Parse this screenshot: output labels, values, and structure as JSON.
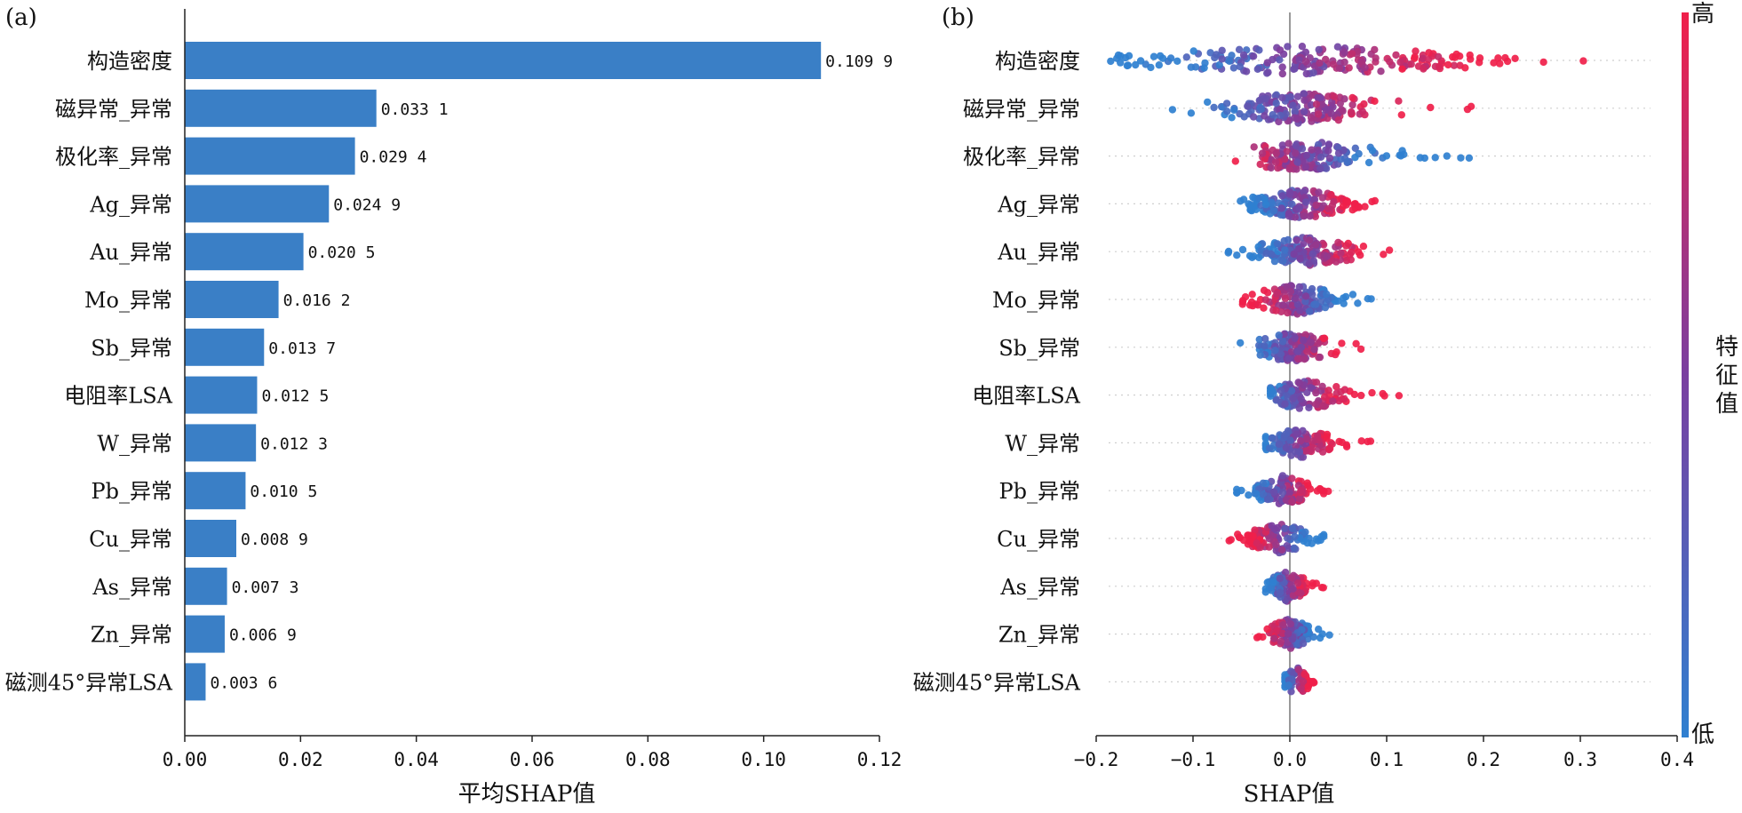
{
  "chart_data": [
    {
      "type": "bar",
      "orientation": "horizontal",
      "panel_label": "(a)",
      "xlabel": "平均SHAP值",
      "xlim": [
        0,
        0.12
      ],
      "xticks": [
        "0.00",
        "0.02",
        "0.04",
        "0.06",
        "0.08",
        "0.10",
        "0.12"
      ],
      "bar_color": "#3a7fc6",
      "categories": [
        "构造密度",
        "磁异常_异常",
        "极化率_异常",
        "Ag_异常",
        "Au_异常",
        "Mo_异常",
        "Sb_异常",
        "电阻率LSA",
        "W_异常",
        "Pb_异常",
        "Cu_异常",
        "As_异常",
        "Zn_异常",
        "磁测45°异常LSA"
      ],
      "values": [
        0.1099,
        0.0331,
        0.0294,
        0.0249,
        0.0205,
        0.0162,
        0.0137,
        0.0125,
        0.0123,
        0.0105,
        0.0089,
        0.0073,
        0.0069,
        0.0036
      ],
      "value_labels": [
        "0.109 9",
        "0.033 1",
        "0.029 4",
        "0.024 9",
        "0.020 5",
        "0.016 2",
        "0.013 7",
        "0.012 5",
        "0.012 3",
        "0.010 5",
        "0.008 9",
        "0.007 3",
        "0.006 9",
        "0.003 6"
      ]
    },
    {
      "type": "scatter",
      "subtype": "beeswarm",
      "panel_label": "(b)",
      "xlabel": "SHAP值",
      "xlim": [
        -0.2,
        0.4
      ],
      "xticks": [
        "−0.2",
        "−0.1",
        "0.0",
        "0.1",
        "0.2",
        "0.3",
        "0.4"
      ],
      "zero_line": 0,
      "colorbar": {
        "label": "特征值",
        "high_label": "高",
        "low_label": "低",
        "low_color": "#2f80d0",
        "mid_color": "#7a3fa0",
        "high_color": "#f0204a"
      },
      "features": [
        {
          "name": "构造密度",
          "min": -0.185,
          "max": 0.325,
          "low_side": -0.11,
          "high_side": 0.15,
          "n": 200
        },
        {
          "name": "磁异常_异常",
          "min": -0.13,
          "max": 0.2,
          "low_side": -0.04,
          "high_side": 0.06,
          "n": 160
        },
        {
          "name": "极化率_异常",
          "min": -0.06,
          "max": 0.21,
          "low_side": 0.05,
          "high_side": -0.02,
          "n": 150
        },
        {
          "name": "Ag_异常",
          "min": -0.055,
          "max": 0.1,
          "low_side": -0.025,
          "high_side": 0.05,
          "n": 150
        },
        {
          "name": "Au_异常",
          "min": -0.065,
          "max": 0.11,
          "low_side": -0.01,
          "high_side": 0.05,
          "n": 140
        },
        {
          "name": "Mo_异常",
          "min": -0.05,
          "max": 0.09,
          "low_side": 0.03,
          "high_side": -0.015,
          "n": 130
        },
        {
          "name": "Sb_异常",
          "min": -0.06,
          "max": 0.08,
          "low_side": -0.01,
          "high_side": 0.02,
          "n": 130
        },
        {
          "name": "电阻率LSA",
          "min": -0.02,
          "max": 0.115,
          "low_side": -0.01,
          "high_side": 0.04,
          "n": 120
        },
        {
          "name": "W_异常",
          "min": -0.025,
          "max": 0.085,
          "low_side": -0.01,
          "high_side": 0.03,
          "n": 120
        },
        {
          "name": "Pb_异常",
          "min": -0.055,
          "max": 0.04,
          "low_side": -0.025,
          "high_side": 0.01,
          "n": 110
        },
        {
          "name": "Cu_异常",
          "min": -0.065,
          "max": 0.035,
          "low_side": 0.01,
          "high_side": -0.03,
          "n": 110
        },
        {
          "name": "As_异常",
          "min": -0.025,
          "max": 0.035,
          "low_side": -0.01,
          "high_side": 0.005,
          "n": 100
        },
        {
          "name": "Zn_异常",
          "min": -0.035,
          "max": 0.045,
          "low_side": 0.01,
          "high_side": -0.01,
          "n": 100
        },
        {
          "name": "磁测45°异常LSA",
          "min": -0.005,
          "max": 0.03,
          "low_side": -0.002,
          "high_side": 0.015,
          "n": 60
        }
      ]
    }
  ]
}
